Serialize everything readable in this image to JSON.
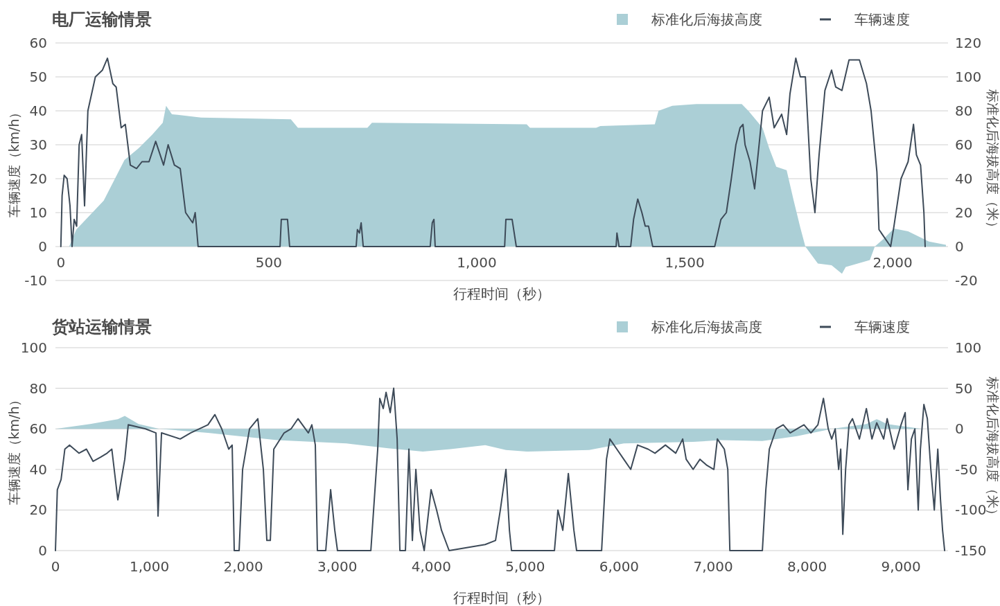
{
  "chart_data": [
    {
      "type": "line",
      "title": "电厂运输情景",
      "xlabel": "行程时间（秒）",
      "ylabel": "车辆速度（km/h）",
      "y2label": "标准化后海拔高度（米）",
      "legend": "top right",
      "grid": "y",
      "xlim": [
        -13,
        2133
      ],
      "xticks": [
        {
          "value": 0,
          "label": "0"
        },
        {
          "value": 500,
          "label": "500"
        },
        {
          "value": 1000,
          "label": "1,000"
        },
        {
          "value": 1500,
          "label": "1,500"
        },
        {
          "value": 2000,
          "label": "2,000"
        }
      ],
      "ylim": [
        -10,
        60
      ],
      "yticks": [
        -10,
        0,
        10,
        20,
        30,
        40,
        50,
        60
      ],
      "y2lim": [
        -20,
        120
      ],
      "y2ticks": [
        -20,
        0,
        20,
        40,
        60,
        80,
        100,
        120
      ],
      "series": [
        {
          "name": "标准化后海拔高度",
          "type": "area",
          "axis": "y2",
          "color": "#abcfd6",
          "x": [
            0,
            20,
            37,
            103,
            153,
            187,
            220,
            245,
            253,
            267,
            337,
            553,
            570,
            737,
            748,
            1120,
            1128,
            1287,
            1297,
            1428,
            1437,
            1470,
            1528,
            1637,
            1653,
            1687,
            1703,
            1720,
            1745,
            1762,
            1778,
            1790,
            1820,
            1853,
            1878,
            1887,
            1945,
            1957,
            1978,
            2003,
            2037,
            2087,
            2128
          ],
          "values": [
            0,
            0,
            10,
            27,
            51,
            58,
            66,
            73,
            83,
            78,
            76,
            75,
            70,
            70,
            73,
            72,
            70,
            70,
            71,
            72,
            80,
            83,
            84,
            84,
            80,
            70,
            58,
            47,
            45,
            27,
            11,
            0,
            -10,
            -11,
            -16,
            -12,
            -8,
            0,
            4.5,
            10.6,
            9,
            3,
            1
          ]
        },
        {
          "name": "车辆速度",
          "type": "line",
          "axis": "y",
          "color": "#3d4a58",
          "x": [
            0,
            3,
            8,
            15,
            22,
            27,
            32,
            38,
            44,
            50,
            57,
            65,
            83,
            100,
            112,
            125,
            133,
            145,
            155,
            167,
            182,
            195,
            212,
            228,
            247,
            258,
            273,
            287,
            300,
            317,
            323,
            330,
            337,
            527,
            530,
            545,
            550,
            710,
            713,
            718,
            722,
            727,
            888,
            893,
            897,
            900,
            1067,
            1070,
            1085,
            1095,
            1335,
            1337,
            1342,
            1370,
            1377,
            1387,
            1397,
            1405,
            1413,
            1423,
            1572,
            1587,
            1600,
            1612,
            1623,
            1633,
            1640,
            1645,
            1657,
            1668,
            1687,
            1703,
            1715,
            1733,
            1745,
            1753,
            1767,
            1778,
            1790,
            1803,
            1813,
            1823,
            1837,
            1853,
            1863,
            1878,
            1895,
            1920,
            1937,
            1948,
            1962,
            1967,
            1995,
            2003,
            2020,
            2037,
            2050,
            2057,
            2067,
            2075,
            2078
          ],
          "values": [
            0,
            15,
            21,
            20,
            12,
            0,
            8,
            6,
            30,
            33,
            12,
            40,
            50,
            52,
            55.5,
            48,
            47,
            35,
            36,
            24,
            23,
            25,
            25,
            31,
            24,
            30,
            24,
            23,
            10,
            7,
            10,
            0,
            0,
            0,
            8,
            8,
            0,
            0,
            5,
            4,
            7,
            0,
            0,
            7,
            8,
            0,
            0,
            8,
            8,
            0,
            0,
            4,
            0,
            0,
            8,
            14,
            10,
            6,
            6,
            0,
            0,
            8,
            10,
            20,
            30,
            35,
            36,
            30,
            25,
            17,
            40,
            44,
            35,
            39,
            33,
            45,
            55.5,
            50,
            50,
            20,
            10,
            27,
            46,
            52,
            47,
            46,
            55,
            55,
            48,
            40,
            22,
            5,
            0,
            6,
            20,
            25,
            36,
            27,
            24,
            10,
            0
          ]
        }
      ]
    },
    {
      "type": "line",
      "title": "货站运输情景",
      "xlabel": "行程时间（秒）",
      "ylabel": "车辆速度（km/h）",
      "y2label": "标准化后海拔高度（米）",
      "legend": "top right",
      "grid": "y",
      "xlim": [
        0,
        9500
      ],
      "xticks": [
        {
          "value": 0,
          "label": "0"
        },
        {
          "value": 1000,
          "label": "1,000"
        },
        {
          "value": 2000,
          "label": "2,000"
        },
        {
          "value": 3000,
          "label": "3,000"
        },
        {
          "value": 4000,
          "label": "4,000"
        },
        {
          "value": 5000,
          "label": "5,000"
        },
        {
          "value": 6000,
          "label": "6,000"
        },
        {
          "value": 7000,
          "label": "7,000"
        },
        {
          "value": 8000,
          "label": "8,000"
        },
        {
          "value": 9000,
          "label": "9,000"
        }
      ],
      "ylim": [
        0,
        100
      ],
      "yticks": [
        0,
        20,
        40,
        60,
        80,
        100
      ],
      "y2lim": [
        -150,
        100
      ],
      "y2ticks": [
        -150,
        -100,
        -50,
        0,
        50,
        100
      ],
      "series": [
        {
          "name": "标准化后海拔高度",
          "type": "area",
          "axis": "y2",
          "color": "#abcfd6",
          "x": [
            0,
            369,
            664,
            738,
            885,
            1107,
            1623,
            2360,
            3098,
            3541,
            3910,
            4205,
            4574,
            4795,
            5016,
            5680,
            6049,
            6787,
            7082,
            7524,
            7893,
            8262,
            8631,
            8741,
            8852,
            9221,
            9500
          ],
          "values": [
            0,
            6,
            12,
            16,
            6,
            0,
            -5,
            -14,
            -18,
            -24,
            -28,
            -25,
            -20,
            -26,
            -28,
            -26,
            -18,
            -16,
            -14,
            -15,
            -9,
            0,
            6,
            12,
            6,
            0,
            0
          ]
        },
        {
          "name": "车辆速度",
          "type": "line",
          "axis": "y",
          "color": "#3d4a58",
          "x": [
            0,
            20,
            60,
            100,
            150,
            250,
            330,
            400,
            480,
            550,
            600,
            664,
            738,
            775,
            959,
            1070,
            1092,
            1129,
            1328,
            1438,
            1623,
            1697,
            1770,
            1844,
            1881,
            1903,
            1955,
            1992,
            2066,
            2154,
            2213,
            2250,
            2287,
            2324,
            2434,
            2508,
            2582,
            2692,
            2729,
            2766,
            2788,
            2877,
            2929,
            2973,
            3002,
            3357,
            3430,
            3452,
            3489,
            3519,
            3563,
            3600,
            3637,
            3666,
            3725,
            3762,
            3799,
            3836,
            3880,
            3925,
            3998,
            4057,
            4109,
            4190,
            4574,
            4684,
            4735,
            4795,
            4832,
            4854,
            5311,
            5348,
            5400,
            5459,
            5518,
            5547,
            5813,
            5865,
            5901,
            5975,
            6049,
            6123,
            6196,
            6307,
            6381,
            6492,
            6602,
            6676,
            6713,
            6787,
            6860,
            6934,
            7008,
            7045,
            7119,
            7156,
            7178,
            7524,
            7561,
            7598,
            7672,
            7746,
            7820,
            7893,
            7967,
            8041,
            8115,
            8174,
            8225,
            8262,
            8299,
            8336,
            8358,
            8380,
            8410,
            8446,
            8483,
            8557,
            8631,
            8690,
            8741,
            8815,
            8852,
            8926,
            9000,
            9044,
            9073,
            9110,
            9147,
            9183,
            9206,
            9243,
            9280,
            9317,
            9354,
            9391,
            9420,
            9442,
            9464
          ],
          "values": [
            0,
            30,
            35,
            50,
            52,
            48,
            50,
            44,
            46,
            48,
            50,
            25,
            45,
            62,
            60,
            58,
            17,
            58,
            55,
            58,
            62,
            67,
            60,
            50,
            52,
            0,
            0,
            40,
            60,
            65,
            40,
            5,
            5,
            50,
            58,
            60,
            65,
            58,
            62,
            52,
            0,
            0,
            30,
            10,
            0,
            0,
            50,
            75,
            70,
            78,
            68,
            80,
            55,
            0,
            0,
            50,
            5,
            40,
            10,
            0,
            30,
            20,
            10,
            0,
            3,
            5,
            20,
            40,
            10,
            0,
            0,
            20,
            10,
            38,
            10,
            0,
            0,
            45,
            55,
            50,
            45,
            40,
            52,
            50,
            48,
            52,
            48,
            55,
            45,
            40,
            45,
            42,
            40,
            55,
            50,
            40,
            0,
            0,
            30,
            50,
            60,
            62,
            58,
            60,
            62,
            58,
            62,
            75,
            60,
            55,
            60,
            40,
            50,
            8,
            40,
            62,
            65,
            55,
            70,
            55,
            63,
            55,
            65,
            50,
            62,
            68,
            30,
            55,
            60,
            20,
            50,
            72,
            65,
            40,
            20,
            50,
            25,
            10,
            0
          ]
        }
      ]
    }
  ]
}
